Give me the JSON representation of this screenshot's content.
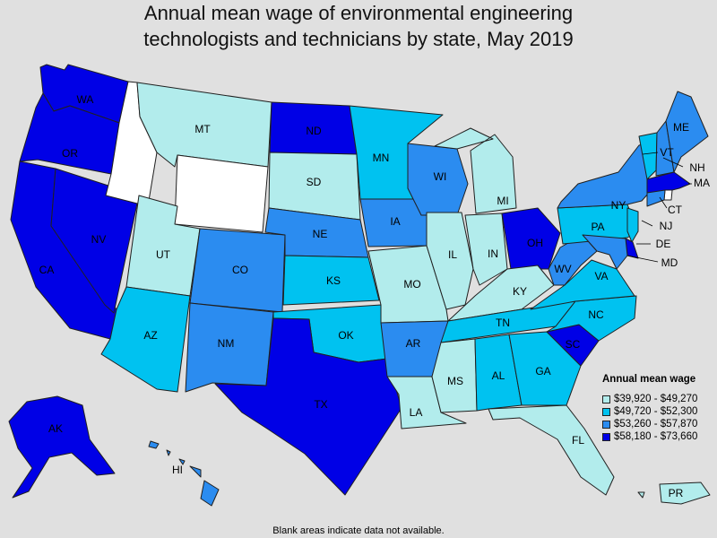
{
  "title": {
    "line1": "Annual mean wage of environmental engineering",
    "line2": "technologists and technicians by state, May 2019"
  },
  "legend": {
    "title": "Annual mean wage",
    "items": [
      {
        "label": "$39,920 - $49,270",
        "color": "#b2ecec"
      },
      {
        "label": "$49,720 - $52,300",
        "color": "#00c2f0"
      },
      {
        "label": "$53,260 - $57,870",
        "color": "#2b8cf0"
      },
      {
        "label": "$58,180 - $73,660",
        "color": "#0000e6"
      }
    ]
  },
  "no_data_color": "#ffffff",
  "footnote": "Blank areas indicate data not available.",
  "states": {
    "WA": {
      "label": "WA",
      "bin": 3
    },
    "OR": {
      "label": "OR",
      "bin": 3
    },
    "CA": {
      "label": "CA",
      "bin": 3
    },
    "NV": {
      "label": "NV",
      "bin": 3
    },
    "ID": {
      "label": "",
      "bin": null
    },
    "MT": {
      "label": "MT",
      "bin": 0
    },
    "WY": {
      "label": "",
      "bin": null
    },
    "UT": {
      "label": "UT",
      "bin": 0
    },
    "AZ": {
      "label": "AZ",
      "bin": 1
    },
    "CO": {
      "label": "CO",
      "bin": 2
    },
    "NM": {
      "label": "NM",
      "bin": 2
    },
    "ND": {
      "label": "ND",
      "bin": 3
    },
    "SD": {
      "label": "SD",
      "bin": 0
    },
    "NE": {
      "label": "NE",
      "bin": 2
    },
    "KS": {
      "label": "KS",
      "bin": 1
    },
    "OK": {
      "label": "OK",
      "bin": 1
    },
    "TX": {
      "label": "TX",
      "bin": 3
    },
    "MN": {
      "label": "MN",
      "bin": 1
    },
    "IA": {
      "label": "IA",
      "bin": 2
    },
    "MO": {
      "label": "MO",
      "bin": 0
    },
    "AR": {
      "label": "AR",
      "bin": 2
    },
    "LA": {
      "label": "LA",
      "bin": 0
    },
    "WI": {
      "label": "WI",
      "bin": 2
    },
    "IL": {
      "label": "IL",
      "bin": 0
    },
    "MI": {
      "label": "MI",
      "bin": 0
    },
    "IN": {
      "label": "IN",
      "bin": 0
    },
    "OH": {
      "label": "OH",
      "bin": 3
    },
    "KY": {
      "label": "KY",
      "bin": 0
    },
    "TN": {
      "label": "TN",
      "bin": 1
    },
    "MS": {
      "label": "MS",
      "bin": 0
    },
    "AL": {
      "label": "AL",
      "bin": 1
    },
    "GA": {
      "label": "GA",
      "bin": 1
    },
    "FL": {
      "label": "FL",
      "bin": 0
    },
    "SC": {
      "label": "SC",
      "bin": 3
    },
    "NC": {
      "label": "NC",
      "bin": 1
    },
    "VA": {
      "label": "VA",
      "bin": 1
    },
    "WV": {
      "label": "WV",
      "bin": 2
    },
    "PA": {
      "label": "PA",
      "bin": 1
    },
    "NY": {
      "label": "NY",
      "bin": 2
    },
    "ME": {
      "label": "ME",
      "bin": 2
    },
    "VT": {
      "label": "VT",
      "bin": 1
    },
    "NH": {
      "label": "NH",
      "bin": 2
    },
    "MA": {
      "label": "MA",
      "bin": 3
    },
    "CT": {
      "label": "CT",
      "bin": 2
    },
    "RI": {
      "label": "",
      "bin": null
    },
    "NJ": {
      "label": "NJ",
      "bin": 1
    },
    "DE": {
      "label": "DE",
      "bin": 3
    },
    "MD": {
      "label": "MD",
      "bin": 2
    },
    "AK": {
      "label": "AK",
      "bin": 3
    },
    "HI": {
      "label": "HI",
      "bin": 2
    },
    "PR": {
      "label": "PR",
      "bin": 0
    }
  }
}
